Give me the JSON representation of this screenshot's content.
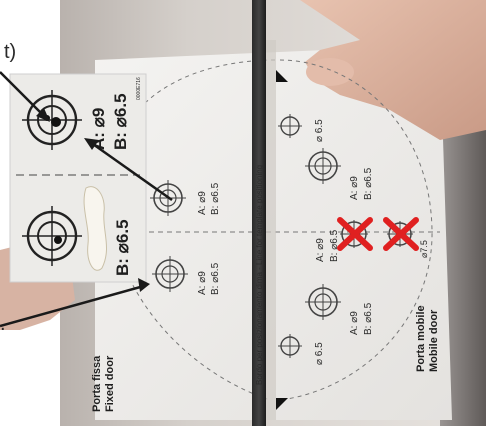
{
  "photo": {
    "corner_text_top": "t)",
    "corner_text_bottom": "."
  },
  "template": {
    "center_strip_text": "Bordo per posizionamento dima - Line for template positioning",
    "left_label_it": "Porta fissa",
    "left_label_en": "Fixed door",
    "right_label_it": "Porta mobile",
    "right_label_en": "Mobile door",
    "small_code": "0000E716",
    "holes": [
      {
        "a": "A: ⌀9",
        "b": "B: ⌀6.5"
      },
      {
        "a": "A: ⌀9",
        "b": "B: ⌀6.5"
      },
      {
        "a": "A: ⌀9",
        "b": "B: ⌀6.5"
      },
      {
        "a": "A: ⌀9",
        "b": "B: ⌀6.5"
      },
      {
        "a": "A: ⌀9",
        "b": "B: ⌀6.5"
      },
      {
        "a": "A: ⌀9",
        "b": "B: ⌀6.5"
      }
    ],
    "single_holes": [
      "⌀ 6.5",
      "⌀ 6.5",
      "⌀7.5"
    ]
  },
  "inset": {
    "label_a": "A: ⌀9",
    "label_b": "B: ⌀6.5",
    "label_b2": "B: ⌀6.5"
  },
  "colors": {
    "cross": "#e02020",
    "arrow": "#1a1a1a",
    "paper": "#f2f2f0"
  }
}
